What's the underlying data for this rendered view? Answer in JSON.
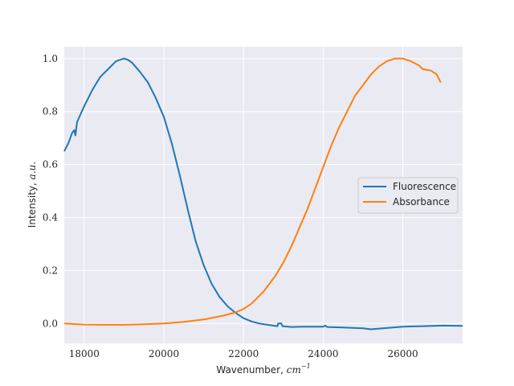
{
  "chart_data": {
    "type": "line",
    "xlabel": "Wavenumber, ",
    "xlabel_unit": "cm",
    "xlabel_exp": "−1",
    "ylabel": "Intensity, ",
    "ylabel_unit": "a.u.",
    "xlim": [
      17500,
      27500
    ],
    "ylim": [
      -0.075,
      1.045
    ],
    "x_ticks": [
      18000,
      20000,
      22000,
      24000,
      26000
    ],
    "y_ticks": [
      0.0,
      0.2,
      0.4,
      0.6,
      0.8,
      1.0
    ],
    "grid": true,
    "legend": "center-right",
    "series": [
      {
        "name": "Fluorescence",
        "color": "#1f77b4",
        "points": [
          [
            17500,
            0.65
          ],
          [
            17600,
            0.68
          ],
          [
            17700,
            0.72
          ],
          [
            17750,
            0.73
          ],
          [
            17780,
            0.71
          ],
          [
            17820,
            0.76
          ],
          [
            18000,
            0.82
          ],
          [
            18200,
            0.88
          ],
          [
            18400,
            0.93
          ],
          [
            18600,
            0.96
          ],
          [
            18800,
            0.99
          ],
          [
            19000,
            1.0
          ],
          [
            19100,
            0.995
          ],
          [
            19200,
            0.985
          ],
          [
            19400,
            0.95
          ],
          [
            19600,
            0.91
          ],
          [
            19800,
            0.85
          ],
          [
            20000,
            0.78
          ],
          [
            20200,
            0.68
          ],
          [
            20400,
            0.56
          ],
          [
            20600,
            0.43
          ],
          [
            20800,
            0.31
          ],
          [
            21000,
            0.22
          ],
          [
            21200,
            0.15
          ],
          [
            21400,
            0.1
          ],
          [
            21600,
            0.065
          ],
          [
            21800,
            0.04
          ],
          [
            22000,
            0.02
          ],
          [
            22200,
            0.008
          ],
          [
            22400,
            0.0
          ],
          [
            22600,
            -0.005
          ],
          [
            22850,
            -0.01
          ],
          [
            22870,
            0.0
          ],
          [
            22950,
            0.0
          ],
          [
            22980,
            -0.01
          ],
          [
            23200,
            -0.013
          ],
          [
            23500,
            -0.012
          ],
          [
            24000,
            -0.012
          ],
          [
            24050,
            -0.008
          ],
          [
            24100,
            -0.013
          ],
          [
            24500,
            -0.015
          ],
          [
            25000,
            -0.018
          ],
          [
            25200,
            -0.022
          ],
          [
            25500,
            -0.018
          ],
          [
            26000,
            -0.012
          ],
          [
            26500,
            -0.01
          ],
          [
            27000,
            -0.008
          ],
          [
            27500,
            -0.009
          ]
        ]
      },
      {
        "name": "Absorbance",
        "color": "#ff7f0e",
        "points": [
          [
            17500,
            0.0
          ],
          [
            18000,
            -0.004
          ],
          [
            18500,
            -0.005
          ],
          [
            19000,
            -0.005
          ],
          [
            19500,
            -0.003
          ],
          [
            20000,
            0.0
          ],
          [
            20500,
            0.006
          ],
          [
            21000,
            0.015
          ],
          [
            21500,
            0.03
          ],
          [
            21800,
            0.042
          ],
          [
            22000,
            0.055
          ],
          [
            22200,
            0.075
          ],
          [
            22500,
            0.12
          ],
          [
            22800,
            0.18
          ],
          [
            23000,
            0.23
          ],
          [
            23200,
            0.29
          ],
          [
            23400,
            0.36
          ],
          [
            23600,
            0.43
          ],
          [
            23800,
            0.51
          ],
          [
            24000,
            0.59
          ],
          [
            24200,
            0.67
          ],
          [
            24400,
            0.74
          ],
          [
            24600,
            0.8
          ],
          [
            24800,
            0.86
          ],
          [
            25000,
            0.9
          ],
          [
            25200,
            0.94
          ],
          [
            25400,
            0.97
          ],
          [
            25600,
            0.99
          ],
          [
            25800,
            1.0
          ],
          [
            26000,
            1.0
          ],
          [
            26200,
            0.99
          ],
          [
            26400,
            0.975
          ],
          [
            26500,
            0.96
          ],
          [
            26700,
            0.955
          ],
          [
            26850,
            0.94
          ],
          [
            26950,
            0.91
          ]
        ]
      }
    ]
  }
}
